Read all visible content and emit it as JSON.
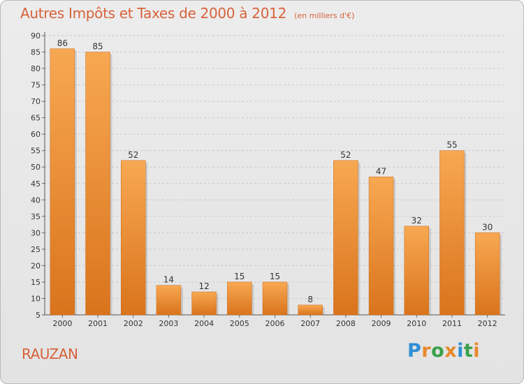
{
  "title": "Autres Impôts et Taxes de 2000 à 2012",
  "subtitle": "(en milliers d'€)",
  "place": "RAUZAN",
  "logo": {
    "text": "Proxiti",
    "letter_colors": [
      "#2f8fd6",
      "#e8892c",
      "#3aa14a",
      "#e8892c",
      "#2f8fd6",
      "#3aa14a",
      "#e8892c"
    ]
  },
  "chart_data": {
    "type": "bar",
    "title": "Autres Impôts et Taxes de 2000 à 2012",
    "subtitle": "(en milliers d'€)",
    "categories": [
      "2000",
      "2001",
      "2002",
      "2003",
      "2004",
      "2005",
      "2006",
      "2007",
      "2008",
      "2009",
      "2010",
      "2011",
      "2012"
    ],
    "values": [
      86,
      85,
      52,
      14,
      12,
      15,
      15,
      8,
      52,
      47,
      32,
      55,
      30
    ],
    "ylim": [
      5,
      90
    ],
    "yticks": [
      5,
      10,
      15,
      20,
      25,
      30,
      35,
      40,
      45,
      50,
      55,
      60,
      65,
      70,
      75,
      80,
      85,
      90
    ],
    "grid": "horizontal dashed",
    "bar_color_top": "#f8a852",
    "bar_color_bottom": "#d9741c"
  }
}
